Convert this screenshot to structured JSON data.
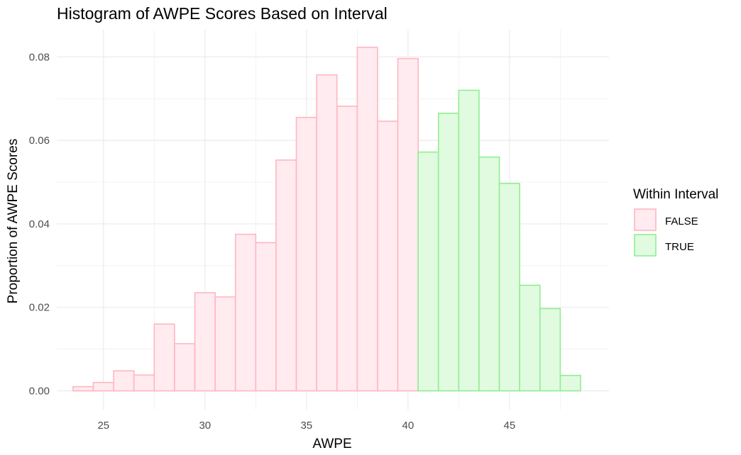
{
  "chart_data": {
    "type": "bar",
    "title": "Histogram of AWPE Scores Based on Interval",
    "xlabel": "AWPE",
    "ylabel": "Proportion of AWPE Scores",
    "xlim": [
      22.7,
      49.9
    ],
    "ylim": [
      -0.0045,
      0.0865
    ],
    "x_ticks": [
      25,
      30,
      35,
      40,
      45
    ],
    "y_ticks": [
      0.0,
      0.02,
      0.04,
      0.06,
      0.08
    ],
    "y_tick_labels": [
      "0.00",
      "0.02",
      "0.04",
      "0.06",
      "0.08"
    ],
    "bin_width": 1,
    "grid": true,
    "legend": {
      "title": "Within Interval",
      "position": "right",
      "entries": [
        "FALSE",
        "TRUE"
      ]
    },
    "colors": {
      "FALSE": {
        "fill": "#ffebf0",
        "stroke": "#ffb6c1"
      },
      "TRUE": {
        "fill": "#e1fbe1",
        "stroke": "#90ee90"
      },
      "grid": "#ebebeb"
    },
    "series": [
      {
        "name": "FALSE",
        "x": [
          24,
          25,
          26,
          27,
          28,
          29,
          30,
          31,
          32,
          33,
          34,
          35,
          36,
          37,
          38,
          39,
          40
        ],
        "values": [
          0.001,
          0.002,
          0.0048,
          0.0038,
          0.016,
          0.0113,
          0.0235,
          0.0225,
          0.0375,
          0.0355,
          0.0553,
          0.0655,
          0.0757,
          0.0682,
          0.0823,
          0.0646,
          0.0796
        ]
      },
      {
        "name": "TRUE",
        "x": [
          41,
          42,
          43,
          44,
          45,
          46,
          47,
          48
        ],
        "values": [
          0.0572,
          0.0665,
          0.072,
          0.056,
          0.0497,
          0.0253,
          0.0197,
          0.0037
        ]
      }
    ]
  }
}
